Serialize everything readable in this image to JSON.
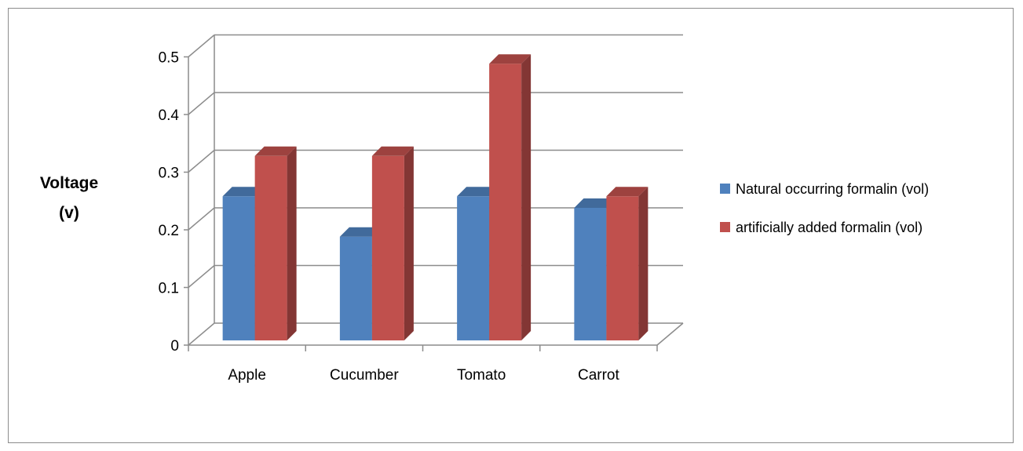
{
  "chart_data": {
    "type": "bar",
    "style": "3d-clustered-column",
    "categories": [
      "Apple",
      "Cucumber",
      "Tomato",
      "Carrot"
    ],
    "series": [
      {
        "name": "Natural occurring formalin (vol)",
        "values": [
          0.25,
          0.18,
          0.25,
          0.23
        ],
        "color": "#4f81bd"
      },
      {
        "name": "artificially  added formalin (vol)",
        "values": [
          0.32,
          0.32,
          0.48,
          0.25
        ],
        "color": "#c0504d"
      }
    ],
    "ylabel_lines": [
      "Voltage",
      "(v)"
    ],
    "yticks": [
      "0",
      "0.1",
      "0.2",
      "0.3",
      "0.4",
      "0.5"
    ],
    "ylim": [
      0,
      0.5
    ],
    "grid": true,
    "legend": "right"
  }
}
